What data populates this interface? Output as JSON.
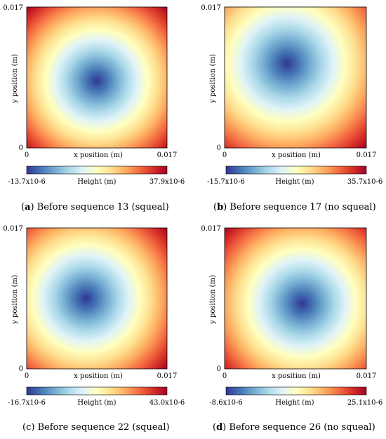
{
  "chart_data": [
    {
      "type": "heatmap",
      "panel_label": "a",
      "caption": "Before sequence 13 (squeal)",
      "xlabel": "x position (m)",
      "ylabel": "y position (m)",
      "xlim": [
        0,
        0.017
      ],
      "ylim": [
        0,
        0.017
      ],
      "x_ticks": [
        "0",
        "0.017"
      ],
      "y_ticks": [
        "0",
        "0.017"
      ],
      "colorbar": {
        "label": "Height (m)",
        "min_label": "-13.7x10-6",
        "max_label": "37.9x10-6",
        "min": -1.37e-05,
        "max": 3.79e-05
      },
      "minimum_location": {
        "x": 0.0085,
        "y": 0.0081
      },
      "colormap": [
        "#313695",
        "#4575b4",
        "#74add1",
        "#abd9e9",
        "#e0f3f8",
        "#ffffbf",
        "#fee090",
        "#fdae61",
        "#f46d43",
        "#d73027",
        "#a50026"
      ]
    },
    {
      "type": "heatmap",
      "panel_label": "b",
      "caption": "Before sequence 17 (no squeal)",
      "xlabel": "x position (m)",
      "ylabel": "y position (m)",
      "xlim": [
        0,
        0.017
      ],
      "ylim": [
        0,
        0.017
      ],
      "x_ticks": [
        "0",
        "0.017"
      ],
      "y_ticks": [
        "0",
        "0.017"
      ],
      "colorbar": {
        "label": "Height (m)",
        "min_label": "-15.7x10-6",
        "max_label": "35.7x10-6",
        "min": -1.57e-05,
        "max": 3.57e-05
      },
      "minimum_location": {
        "x": 0.0075,
        "y": 0.0102
      },
      "colormap": [
        "#313695",
        "#4575b4",
        "#74add1",
        "#abd9e9",
        "#e0f3f8",
        "#ffffbf",
        "#fee090",
        "#fdae61",
        "#f46d43",
        "#d73027",
        "#a50026"
      ]
    },
    {
      "type": "heatmap",
      "panel_label": "c",
      "caption": "Before sequence 22 (squeal)",
      "xlabel": "x position (m)",
      "ylabel": "y position (m)",
      "xlim": [
        0,
        0.017
      ],
      "ylim": [
        0,
        0.017
      ],
      "x_ticks": [
        "0",
        "0.017"
      ],
      "y_ticks": [
        "0",
        "0.017"
      ],
      "colorbar": {
        "label": "Height (m)",
        "min_label": "-16.7x10-6",
        "max_label": "43.0x10-6",
        "min": -1.67e-05,
        "max": 4.3e-05
      },
      "minimum_location": {
        "x": 0.0072,
        "y": 0.0085
      },
      "colormap": [
        "#313695",
        "#4575b4",
        "#74add1",
        "#abd9e9",
        "#e0f3f8",
        "#ffffbf",
        "#fee090",
        "#fdae61",
        "#f46d43",
        "#d73027",
        "#a50026"
      ]
    },
    {
      "type": "heatmap",
      "panel_label": "d",
      "caption": "Before sequence 26 (no squeal)",
      "xlabel": "x position (m)",
      "ylabel": "y position (m)",
      "xlim": [
        0,
        0.017
      ],
      "ylim": [
        0,
        0.017
      ],
      "x_ticks": [
        "0",
        "0.017"
      ],
      "y_ticks": [
        "0",
        "0.017"
      ],
      "colorbar": {
        "label": "Height (m)",
        "min_label": "-8.6x10-6",
        "max_label": "25.1x10-6",
        "min": -8.6e-06,
        "max": 2.51e-05
      },
      "minimum_location": {
        "x": 0.0093,
        "y": 0.0079
      },
      "colormap": [
        "#313695",
        "#4575b4",
        "#74add1",
        "#abd9e9",
        "#e0f3f8",
        "#ffffbf",
        "#fee090",
        "#fdae61",
        "#f46d43",
        "#d73027",
        "#a50026"
      ]
    }
  ]
}
